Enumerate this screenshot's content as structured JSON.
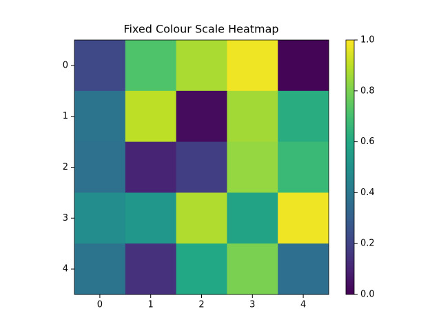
{
  "chart_data": {
    "type": "heatmap",
    "title": "Fixed Colour Scale Heatmap",
    "colormap": "viridis",
    "values": [
      [
        0.22,
        0.72,
        0.87,
        0.98,
        0.01
      ],
      [
        0.38,
        0.9,
        0.03,
        0.86,
        0.62
      ],
      [
        0.37,
        0.1,
        0.18,
        0.84,
        0.67
      ],
      [
        0.48,
        0.52,
        0.88,
        0.58,
        0.98
      ],
      [
        0.38,
        0.14,
        0.6,
        0.8,
        0.36
      ]
    ],
    "xlim": [
      -0.5,
      4.5
    ],
    "ylim": [
      4.5,
      -0.5
    ],
    "xticks": [
      0,
      1,
      2,
      3,
      4
    ],
    "yticks": [
      0,
      1,
      2,
      3,
      4
    ],
    "clim": [
      0,
      1
    ],
    "cticks": [
      {
        "value": 0,
        "label": "0.0"
      },
      0.2,
      0.4,
      0.6,
      0.8,
      {
        "value": 1,
        "label": "1.0"
      }
    ]
  }
}
